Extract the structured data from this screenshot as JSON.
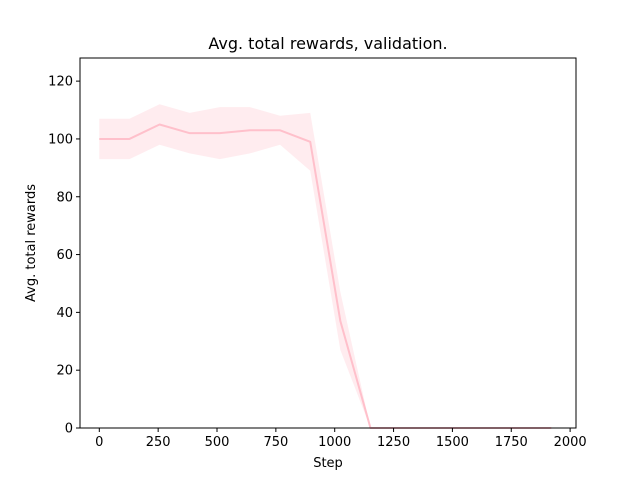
{
  "chart_data": {
    "type": "line",
    "title": "Avg. total rewards, validation.",
    "xlabel": "Step",
    "ylabel": "Avg. total rewards",
    "xlim": [
      -82,
      2025
    ],
    "ylim": [
      0,
      128
    ],
    "xticks": [
      0,
      250,
      500,
      750,
      1000,
      1250,
      1500,
      1750,
      2000
    ],
    "yticks": [
      0,
      20,
      40,
      60,
      80,
      100,
      120
    ],
    "grid": false,
    "legend": "none",
    "series": [
      {
        "color": "#ffc0cb",
        "x": [
          0,
          128,
          256,
          384,
          512,
          640,
          768,
          896,
          1024,
          1152,
          1280,
          1408,
          1536,
          1664,
          1792,
          1920
        ],
        "y": [
          100,
          100,
          105,
          102,
          102,
          103,
          103,
          99,
          37,
          0,
          0,
          0,
          0,
          0,
          0,
          0
        ],
        "y_upper": [
          107,
          107,
          112,
          109,
          111,
          111,
          108,
          109,
          47,
          0,
          0,
          0,
          0,
          0,
          0,
          0
        ],
        "y_lower": [
          93,
          93,
          98,
          95,
          93,
          95,
          98,
          89,
          27,
          0,
          0,
          0,
          0,
          0,
          0,
          0
        ]
      }
    ]
  }
}
